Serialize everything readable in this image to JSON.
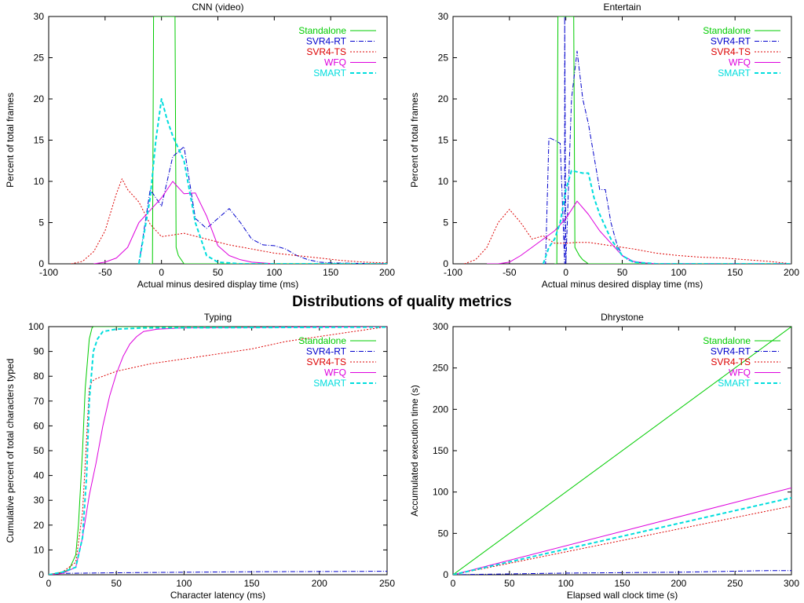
{
  "page": {
    "title": "Distributions of quality metrics"
  },
  "series_styles": {
    "Standalone": {
      "color": "#00cc00",
      "dash": ""
    },
    "SVR4-RT": {
      "color": "#0000cc",
      "dash": "6,2,1,2"
    },
    "SVR4-TS": {
      "color": "#dd0000",
      "dash": "2,2"
    },
    "WFQ": {
      "color": "#dd00dd",
      "dash": ""
    },
    "SMART": {
      "color": "#00dddd",
      "dash": "5,3"
    }
  },
  "chart_data": [
    {
      "id": "cnn",
      "type": "line",
      "title": "CNN (video)",
      "xlabel": "Actual minus desired display time (ms)",
      "ylabel": "Percent of total frames",
      "xlim": [
        -100,
        200
      ],
      "ylim": [
        0,
        30
      ],
      "xticks": [
        -100,
        -50,
        0,
        50,
        100,
        150,
        200
      ],
      "yticks": [
        0,
        5,
        10,
        15,
        20,
        25,
        30
      ],
      "xtick_labels": [
        "-100",
        "-50",
        "0",
        "50",
        "100",
        "150",
        "200"
      ],
      "ytick_labels": [
        "0",
        "5",
        "10",
        "15",
        "20",
        "25",
        "30"
      ],
      "legend": "top-right",
      "series": [
        {
          "name": "Standalone",
          "x": [
            -10,
            -8,
            -7,
            12,
            13,
            15,
            20,
            200
          ],
          "y": [
            0,
            0,
            30,
            30,
            2,
            1,
            0,
            0
          ],
          "width": 1
        },
        {
          "name": "SVR4-RT",
          "x": [
            -20,
            -10,
            -5,
            0,
            10,
            20,
            30,
            40,
            50,
            60,
            70,
            80,
            90,
            100,
            110,
            120,
            130,
            140,
            150,
            200
          ],
          "y": [
            0,
            9,
            8,
            7,
            13,
            14.2,
            5.5,
            4.3,
            5.5,
            6.7,
            5,
            3,
            2.3,
            2.2,
            1.8,
            1,
            0.5,
            0.2,
            0.1,
            0
          ],
          "width": 1
        },
        {
          "name": "SVR4-TS",
          "x": [
            -80,
            -70,
            -60,
            -50,
            -40,
            -35,
            -30,
            -20,
            -10,
            0,
            10,
            20,
            40,
            60,
            80,
            100,
            120,
            140,
            160,
            180,
            200
          ],
          "y": [
            0,
            0.3,
            1.5,
            4,
            8.5,
            10.3,
            9,
            7.5,
            4.8,
            3.3,
            3.5,
            3.7,
            3,
            2.3,
            1.8,
            1.3,
            1,
            0.7,
            0.4,
            0.2,
            0.1
          ],
          "width": 1
        },
        {
          "name": "WFQ",
          "x": [
            -60,
            -50,
            -40,
            -30,
            -20,
            -10,
            0,
            10,
            20,
            30,
            40,
            50,
            60,
            70,
            80,
            90,
            100
          ],
          "y": [
            0,
            0.2,
            0.7,
            2,
            5,
            6.5,
            8,
            10,
            8.5,
            8.6,
            5.8,
            2.2,
            1,
            0.5,
            0.2,
            0.1,
            0
          ],
          "width": 1
        },
        {
          "name": "SMART",
          "x": [
            -20,
            -10,
            -5,
            0,
            5,
            10,
            20,
            30,
            40,
            50,
            60,
            70,
            80,
            200
          ],
          "y": [
            0,
            8,
            15,
            20,
            17.5,
            15.5,
            12.5,
            5,
            1,
            0.2,
            0.1,
            0,
            0,
            0
          ],
          "width": 2
        }
      ]
    },
    {
      "id": "entertain",
      "type": "line",
      "title": "Entertain",
      "xlabel": "Actual minus desired display time (ms)",
      "ylabel": "Percent of total frames",
      "xlim": [
        -100,
        200
      ],
      "ylim": [
        0,
        30
      ],
      "xticks": [
        -100,
        -50,
        0,
        50,
        100,
        150,
        200
      ],
      "yticks": [
        0,
        5,
        10,
        15,
        20,
        25,
        30
      ],
      "xtick_labels": [
        "-100",
        "-50",
        "0",
        "50",
        "100",
        "150",
        "200"
      ],
      "ytick_labels": [
        "0",
        "5",
        "10",
        "15",
        "20",
        "25",
        "30"
      ],
      "legend": "top-right",
      "series": [
        {
          "name": "Standalone",
          "x": [
            -10,
            -8,
            -7,
            7,
            8,
            12,
            15,
            20,
            200
          ],
          "y": [
            0,
            0,
            30,
            30,
            2,
            1,
            0.5,
            0,
            0
          ],
          "width": 1
        },
        {
          "name": "SVR4-RT",
          "x": [
            -20,
            -19,
            -18,
            -15,
            -10,
            -5,
            -1,
            -1,
            0,
            5,
            10,
            15,
            20,
            25,
            30,
            35,
            40,
            45,
            50,
            55,
            60,
            70,
            80,
            200
          ],
          "y": [
            0,
            0,
            0,
            15.3,
            15,
            14.6,
            0,
            30,
            0,
            20,
            25.8,
            20,
            17,
            13,
            9,
            9,
            5,
            2.5,
            1,
            0.5,
            0.2,
            0.1,
            0,
            0
          ],
          "width": 1
        },
        {
          "name": "SVR4-TS",
          "x": [
            -90,
            -80,
            -70,
            -60,
            -50,
            -40,
            -30,
            -20,
            -10,
            0,
            10,
            20,
            40,
            60,
            80,
            100,
            120,
            140,
            160,
            180,
            200
          ],
          "y": [
            0,
            0.5,
            2,
            5,
            6.6,
            5,
            3,
            3.4,
            2.5,
            2.5,
            2.6,
            2.6,
            2.2,
            1.8,
            1.3,
            1,
            0.8,
            0.7,
            0.5,
            0.3,
            0
          ],
          "width": 1
        },
        {
          "name": "WFQ",
          "x": [
            -70,
            -60,
            -50,
            -40,
            -30,
            -20,
            -10,
            0,
            10,
            20,
            30,
            40,
            50,
            60,
            70,
            80
          ],
          "y": [
            0,
            0,
            0.2,
            1,
            2,
            3,
            4,
            5.5,
            7.6,
            6,
            4,
            2.5,
            1,
            0.3,
            0.1,
            0
          ],
          "width": 1
        },
        {
          "name": "SMART",
          "x": [
            -20,
            -15,
            -10,
            -5,
            0,
            5,
            15,
            20,
            25,
            30,
            40,
            50,
            60,
            70,
            80,
            200
          ],
          "y": [
            0,
            2,
            3,
            5,
            9,
            11.3,
            11,
            11,
            8,
            6,
            3,
            1,
            0.2,
            0.1,
            0,
            0
          ],
          "width": 2
        }
      ]
    },
    {
      "id": "typing",
      "type": "line",
      "title": "Typing",
      "xlabel": "Character latency (ms)",
      "ylabel": "Cumulative percent of total characters typed",
      "xlim": [
        0,
        250
      ],
      "ylim": [
        0,
        100
      ],
      "xticks": [
        0,
        50,
        100,
        150,
        200,
        250
      ],
      "yticks": [
        0,
        10,
        20,
        30,
        40,
        50,
        60,
        70,
        80,
        90,
        100
      ],
      "xtick_labels": [
        "0",
        "50",
        "100",
        "150",
        "200",
        "250"
      ],
      "ytick_labels": [
        "0",
        "10",
        "20",
        "30",
        "40",
        "50",
        "60",
        "70",
        "80",
        "90",
        "100"
      ],
      "legend": "top-right",
      "series": [
        {
          "name": "Standalone",
          "x": [
            0,
            5,
            10,
            15,
            20,
            22,
            25,
            27,
            30,
            32,
            33,
            250
          ],
          "y": [
            0,
            0.5,
            1,
            2,
            8,
            20,
            50,
            75,
            95,
            99.5,
            100,
            100
          ],
          "width": 1
        },
        {
          "name": "SVR4-RT",
          "x": [
            0,
            5,
            50,
            100,
            150,
            200,
            250
          ],
          "y": [
            0,
            0.5,
            0.8,
            1,
            1.2,
            1.3,
            1.4
          ],
          "width": 1
        },
        {
          "name": "SVR4-TS",
          "x": [
            0,
            10,
            20,
            25,
            28,
            30,
            32,
            35,
            40,
            50,
            75,
            100,
            125,
            150,
            175,
            200,
            225,
            250
          ],
          "y": [
            0,
            1,
            5,
            25,
            55,
            75,
            78,
            79,
            80,
            82,
            85,
            87,
            89,
            91,
            94,
            96,
            98,
            100
          ],
          "width": 1
        },
        {
          "name": "WFQ",
          "x": [
            0,
            10,
            20,
            25,
            30,
            35,
            40,
            45,
            50,
            55,
            60,
            65,
            70,
            80,
            100,
            250
          ],
          "y": [
            0,
            0.5,
            3,
            15,
            32,
            45,
            60,
            72,
            81,
            88,
            93,
            96,
            98,
            99,
            99.5,
            100
          ],
          "width": 1
        },
        {
          "name": "SMART",
          "x": [
            0,
            5,
            10,
            15,
            20,
            25,
            28,
            30,
            33,
            36,
            40,
            50,
            70,
            250
          ],
          "y": [
            0,
            0.5,
            1,
            2,
            3,
            15,
            40,
            70,
            90,
            95,
            98,
            99,
            99.5,
            99.8
          ],
          "width": 2
        }
      ]
    },
    {
      "id": "dhrystone",
      "type": "line",
      "title": "Dhrystone",
      "xlabel": "Elapsed wall clock time (s)",
      "ylabel": "Accumulated execution time (s)",
      "xlim": [
        0,
        300
      ],
      "ylim": [
        0,
        300
      ],
      "xticks": [
        0,
        50,
        100,
        150,
        200,
        250,
        300
      ],
      "yticks": [
        0,
        50,
        100,
        150,
        200,
        250,
        300
      ],
      "xtick_labels": [
        "0",
        "50",
        "100",
        "150",
        "200",
        "250",
        "300"
      ],
      "ytick_labels": [
        "0",
        "50",
        "100",
        "150",
        "200",
        "250",
        "300"
      ],
      "legend": "top-right",
      "series": [
        {
          "name": "Standalone",
          "x": [
            0,
            300
          ],
          "y": [
            0,
            300
          ],
          "width": 1
        },
        {
          "name": "SVR4-RT",
          "x": [
            0,
            100,
            200,
            280,
            300
          ],
          "y": [
            0,
            2,
            3,
            5,
            5
          ],
          "width": 1
        },
        {
          "name": "SVR4-TS",
          "x": [
            0,
            300
          ],
          "y": [
            0,
            83
          ],
          "width": 1
        },
        {
          "name": "WFQ",
          "x": [
            0,
            300
          ],
          "y": [
            0,
            105
          ],
          "width": 1
        },
        {
          "name": "SMART",
          "x": [
            0,
            300
          ],
          "y": [
            0,
            93
          ],
          "width": 2
        }
      ]
    }
  ]
}
